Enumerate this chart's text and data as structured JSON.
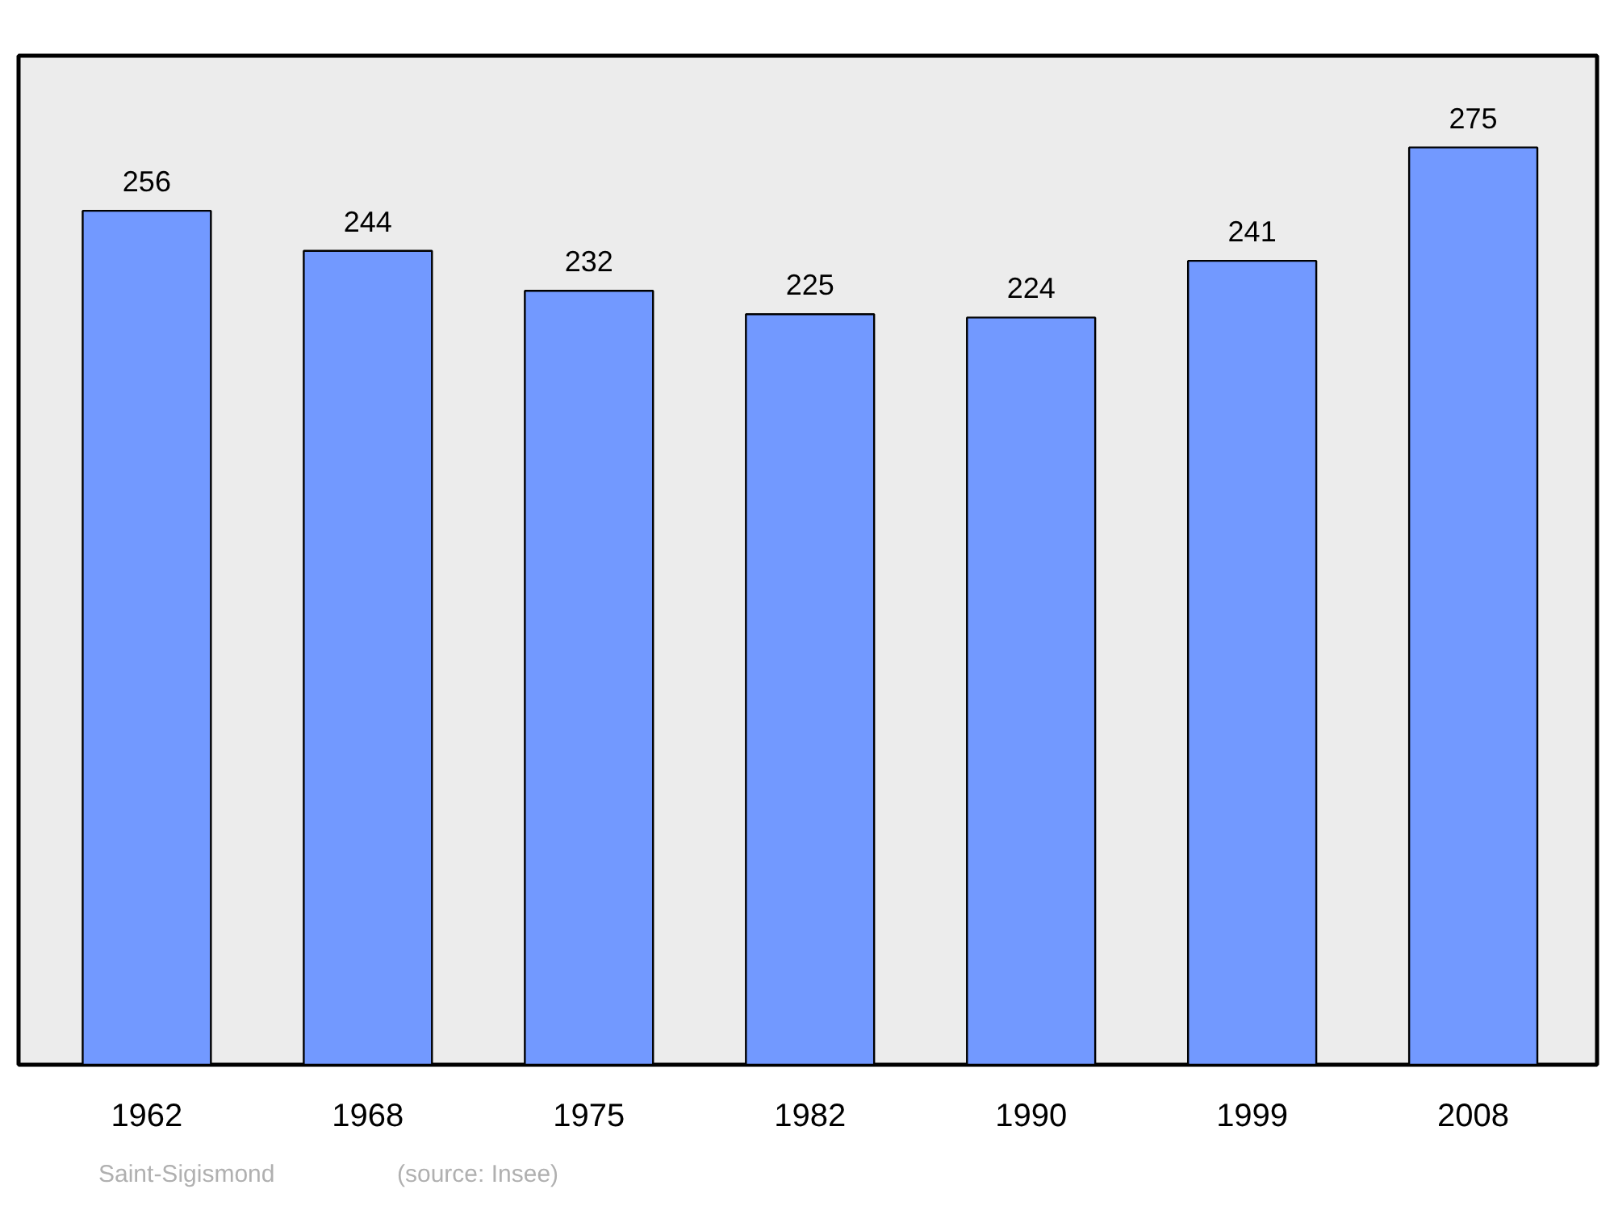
{
  "chart_data": {
    "type": "bar",
    "categories": [
      "1962",
      "1968",
      "1975",
      "1982",
      "1990",
      "1999",
      "2008"
    ],
    "values": [
      256,
      244,
      232,
      225,
      224,
      241,
      275
    ],
    "color": "#7299ff",
    "data_labels": true,
    "grid": false,
    "tick_labels": "x",
    "annotations": [
      "Saint-Sigismond",
      "(source: Insee)"
    ]
  }
}
